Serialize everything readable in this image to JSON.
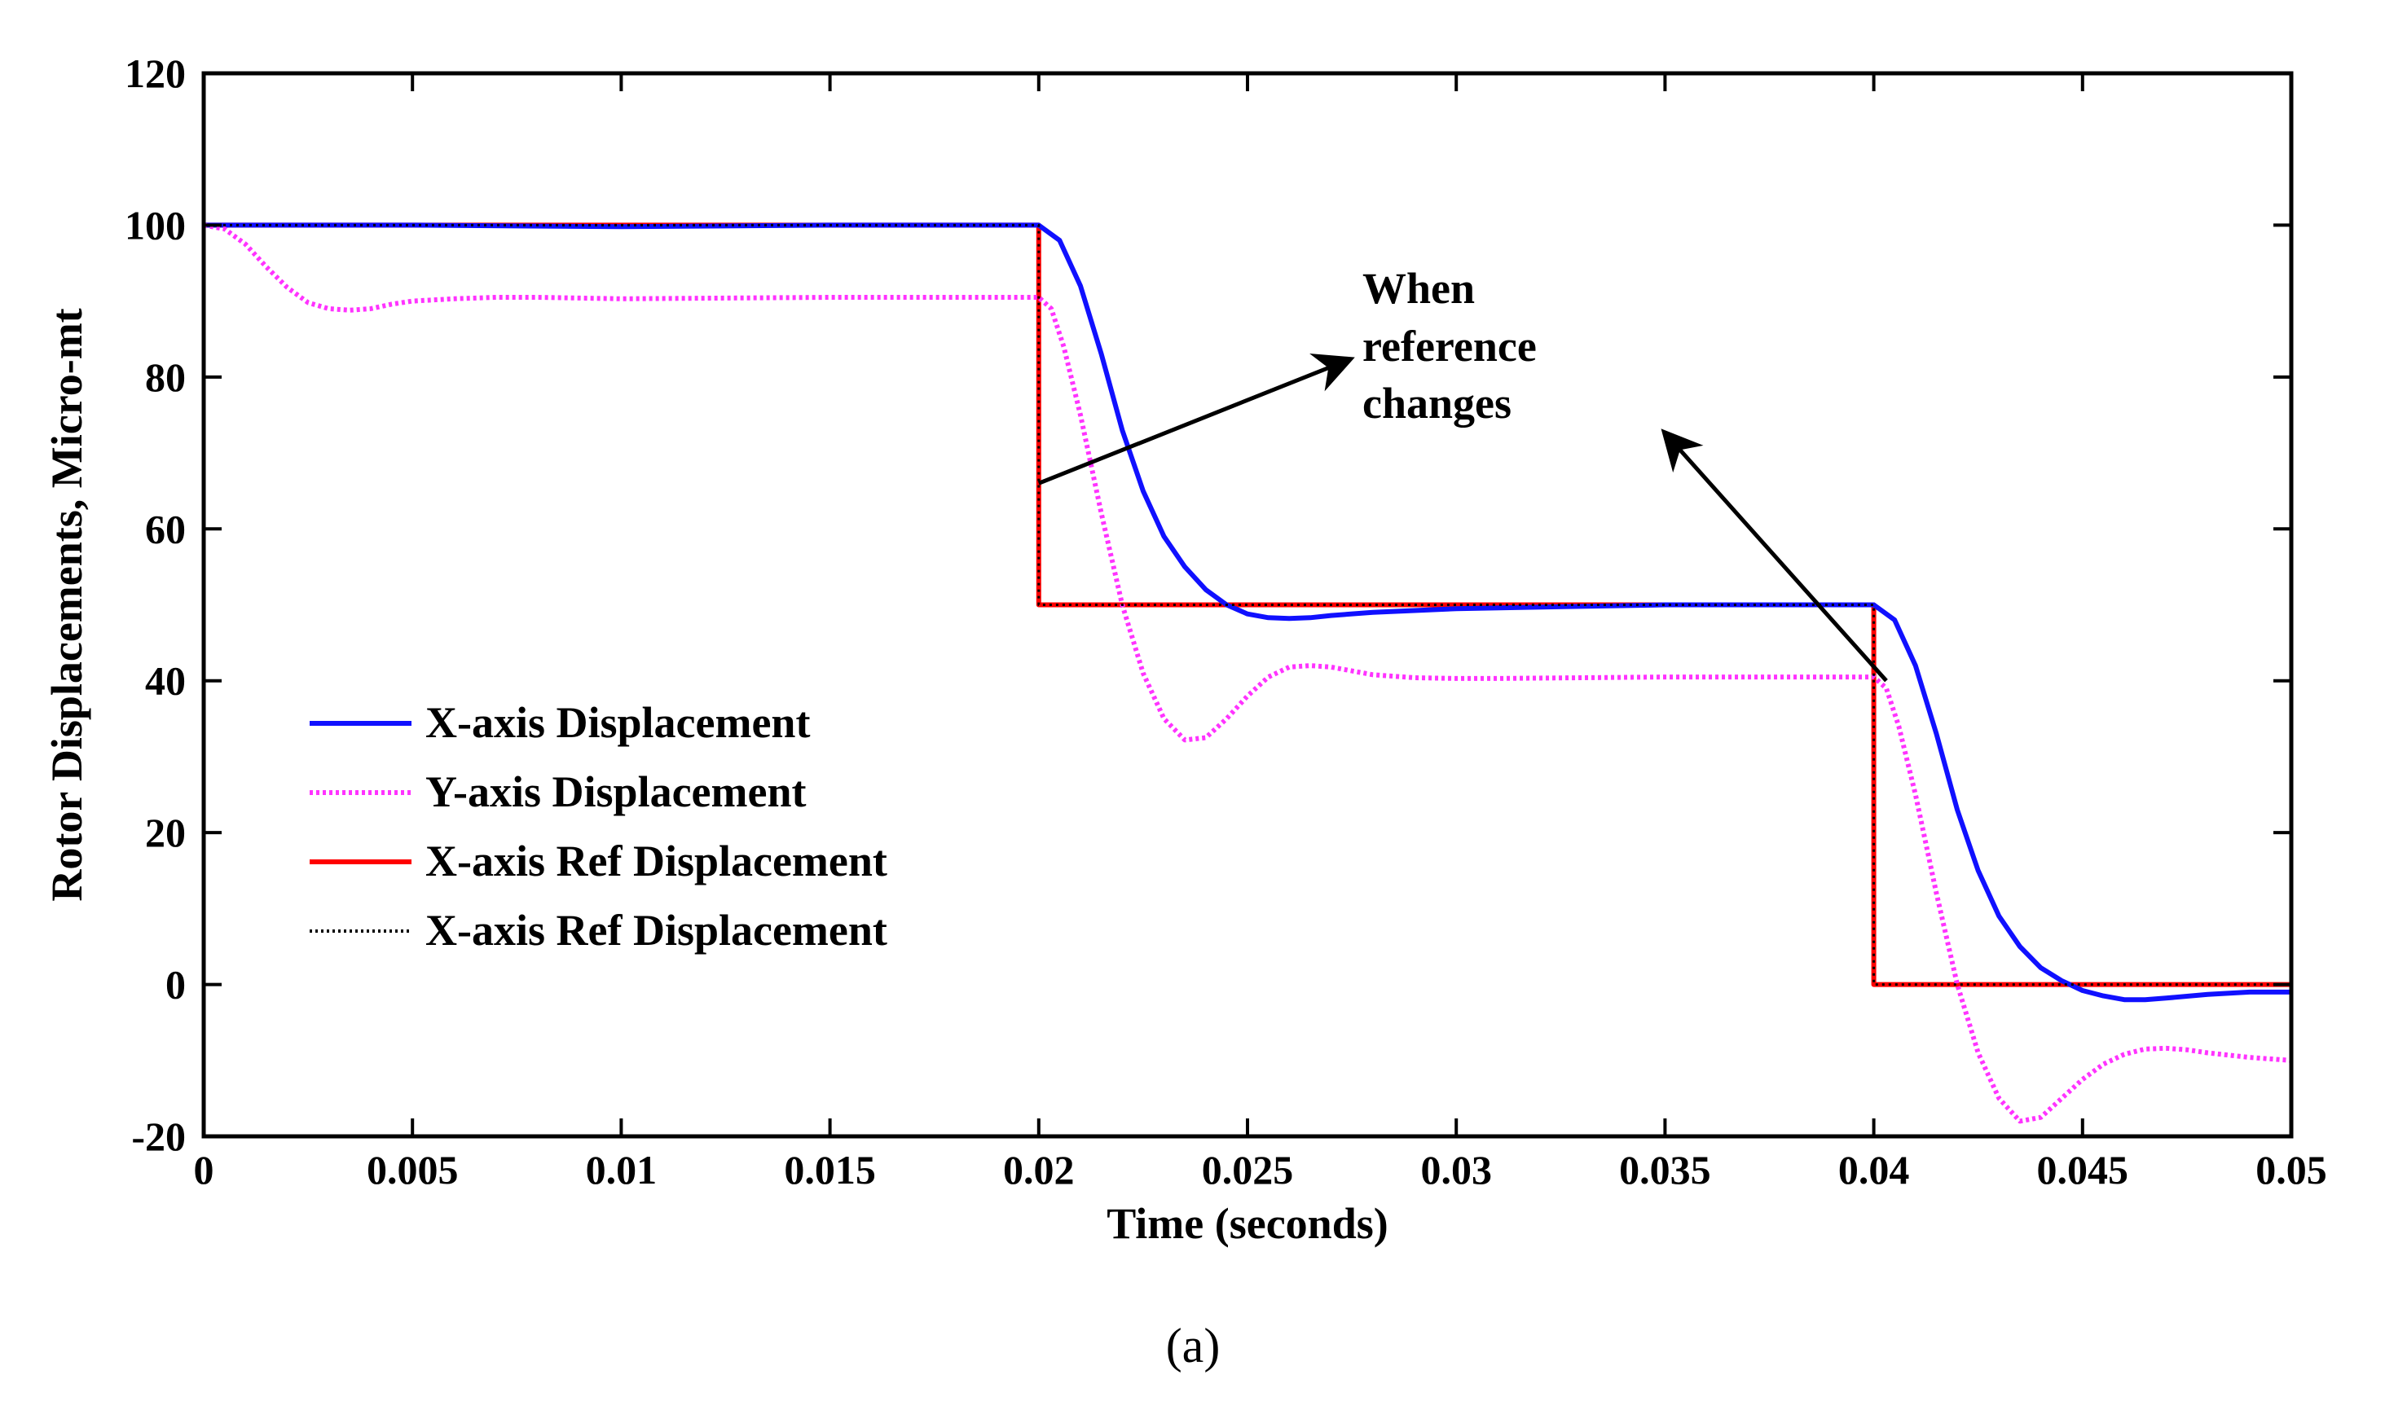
{
  "chart_data": {
    "type": "line",
    "xlabel": "Time (seconds)",
    "ylabel": "Rotor Displacements, Micro-mt",
    "xlim": [
      0,
      0.05
    ],
    "ylim": [
      -20,
      120
    ],
    "x_ticks": [
      0,
      0.005,
      0.01,
      0.015,
      0.02,
      0.025,
      0.03,
      0.035,
      0.04,
      0.045,
      0.05
    ],
    "x_tick_labels": [
      "0",
      "0.005",
      "0.01",
      "0.015",
      "0.02",
      "0.025",
      "0.03",
      "0.035",
      "0.04",
      "0.045",
      "0.05"
    ],
    "y_ticks": [
      -20,
      0,
      20,
      40,
      60,
      80,
      100,
      120
    ],
    "y_tick_labels": [
      "-20",
      "0",
      "20",
      "40",
      "60",
      "80",
      "100",
      "120"
    ],
    "grid": false,
    "legend_position": "center-left",
    "series": [
      {
        "name": "X-axis Displacement",
        "color": "#1010ff",
        "style": "solid",
        "x": [
          0,
          0.005,
          0.01,
          0.015,
          0.02,
          0.0205,
          0.021,
          0.0215,
          0.022,
          0.0225,
          0.023,
          0.0235,
          0.024,
          0.0245,
          0.025,
          0.0255,
          0.026,
          0.0265,
          0.027,
          0.028,
          0.03,
          0.035,
          0.04,
          0.0405,
          0.041,
          0.0415,
          0.042,
          0.0425,
          0.043,
          0.0435,
          0.044,
          0.0445,
          0.045,
          0.0455,
          0.046,
          0.0465,
          0.047,
          0.048,
          0.049,
          0.05
        ],
        "y": [
          100,
          100,
          99.8,
          100,
          100,
          98,
          92,
          83,
          73,
          65,
          59,
          55,
          52,
          50,
          48.8,
          48.3,
          48.2,
          48.3,
          48.6,
          49,
          49.5,
          50,
          50,
          48,
          42,
          33,
          23,
          15,
          9,
          5,
          2.2,
          0.5,
          -0.8,
          -1.5,
          -2,
          -2,
          -1.8,
          -1.3,
          -1,
          -1
        ]
      },
      {
        "name": "Y-axis Displacement",
        "color": "#ff33ff",
        "style": "dotted",
        "x": [
          0,
          0.0005,
          0.001,
          0.0015,
          0.002,
          0.0025,
          0.003,
          0.0035,
          0.004,
          0.0045,
          0.005,
          0.006,
          0.007,
          0.008,
          0.01,
          0.015,
          0.02,
          0.0203,
          0.0206,
          0.021,
          0.0215,
          0.022,
          0.0225,
          0.023,
          0.0235,
          0.024,
          0.0245,
          0.025,
          0.0255,
          0.026,
          0.0265,
          0.027,
          0.0275,
          0.028,
          0.029,
          0.03,
          0.031,
          0.035,
          0.04,
          0.0403,
          0.0406,
          0.041,
          0.0415,
          0.042,
          0.0425,
          0.043,
          0.0435,
          0.044,
          0.0445,
          0.045,
          0.0455,
          0.046,
          0.0465,
          0.047,
          0.0475,
          0.048,
          0.049,
          0.05
        ],
        "y": [
          100,
          99.5,
          97.5,
          94.5,
          91.8,
          89.8,
          89,
          88.8,
          89,
          89.6,
          90,
          90.3,
          90.5,
          90.5,
          90.3,
          90.5,
          90.5,
          89,
          84,
          75,
          62,
          50,
          41,
          35,
          32.2,
          32.5,
          35,
          38,
          40.5,
          41.8,
          42,
          41.8,
          41.3,
          40.8,
          40.4,
          40.3,
          40.3,
          40.5,
          40.5,
          39,
          34,
          25,
          12,
          0,
          -9,
          -15,
          -18,
          -17.5,
          -15,
          -12.5,
          -10.5,
          -9.2,
          -8.5,
          -8.4,
          -8.6,
          -9,
          -9.6,
          -10
        ]
      },
      {
        "name": "X-axis Ref Displacement",
        "color": "#ff0000",
        "style": "solid",
        "x": [
          0,
          0.02,
          0.02,
          0.04,
          0.04,
          0.05
        ],
        "y": [
          100,
          100,
          50,
          50,
          0,
          0
        ]
      },
      {
        "name": "X-axis Ref Displacement",
        "color": "#000000",
        "style": "dotted",
        "x": [
          0,
          0.02,
          0.02,
          0.04,
          0.04,
          0.05
        ],
        "y": [
          100,
          100,
          50,
          50,
          0,
          0
        ]
      }
    ],
    "annotation": {
      "lines": [
        "When",
        "reference",
        "changes"
      ],
      "arrows": [
        {
          "from": [
            0.02,
            66
          ],
          "to": [
            0.0273,
            82
          ]
        },
        {
          "from": [
            0.0403,
            40
          ],
          "to": [
            0.0351,
            72
          ]
        }
      ]
    }
  },
  "caption": "(a)"
}
